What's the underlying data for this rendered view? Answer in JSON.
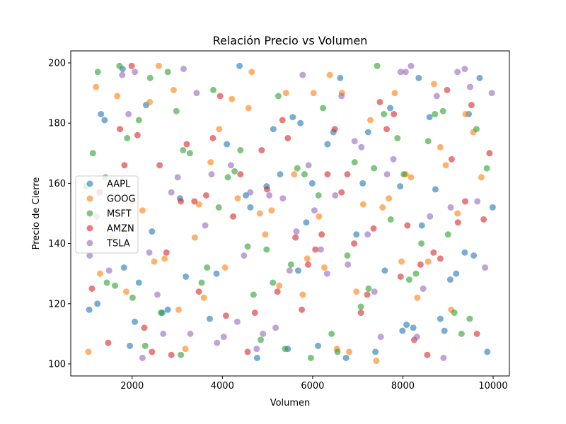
{
  "chart_data": {
    "type": "scatter",
    "title": "Relación Precio vs Volumen",
    "xlabel": "Volumen",
    "ylabel": "Precio de Cierre",
    "xlim": [
      640,
      10360
    ],
    "ylim": [
      96,
      204
    ],
    "xticks": [
      2000,
      4000,
      6000,
      8000,
      10000
    ],
    "yticks": [
      100,
      120,
      140,
      160,
      180,
      200
    ],
    "grid": false,
    "legend_position": "center-left",
    "marker_alpha": 0.6,
    "series": [
      {
        "name": "AAPL",
        "color": "#1f77b4",
        "points": [
          [
            1050,
            118
          ],
          [
            1230,
            120
          ],
          [
            1390,
            181
          ],
          [
            1790,
            198
          ],
          [
            1820,
            132
          ],
          [
            1950,
            106
          ],
          [
            2060,
            114
          ],
          [
            2150,
            127
          ],
          [
            2310,
            186
          ],
          [
            2440,
            144
          ],
          [
            2670,
            117
          ],
          [
            2790,
            118
          ],
          [
            3060,
            155
          ],
          [
            3190,
            129
          ],
          [
            3720,
            115
          ],
          [
            3870,
            130
          ],
          [
            4100,
            173
          ],
          [
            4380,
            199
          ],
          [
            4520,
            156
          ],
          [
            4620,
            152
          ],
          [
            4770,
            102
          ],
          [
            4980,
            159
          ],
          [
            5130,
            178
          ],
          [
            5280,
            163
          ],
          [
            5450,
            105
          ],
          [
            5560,
            182
          ],
          [
            5680,
            131
          ],
          [
            5730,
            180
          ],
          [
            5860,
            147
          ],
          [
            5990,
            160
          ],
          [
            6120,
            106
          ],
          [
            6330,
            173
          ],
          [
            6460,
            177
          ],
          [
            6610,
            195
          ],
          [
            6740,
            102
          ],
          [
            6970,
            143
          ],
          [
            7110,
            160
          ],
          [
            7230,
            177
          ],
          [
            7390,
            104
          ],
          [
            7600,
            131
          ],
          [
            7720,
            185
          ],
          [
            7940,
            159
          ],
          [
            7990,
            111
          ],
          [
            8080,
            113
          ],
          [
            8230,
            112
          ],
          [
            8350,
            195
          ],
          [
            8420,
            146
          ],
          [
            8590,
            182
          ],
          [
            8720,
            158
          ],
          [
            8830,
            115
          ],
          [
            8920,
            111
          ],
          [
            9050,
            128
          ],
          [
            9180,
            130
          ],
          [
            9370,
            137
          ],
          [
            9460,
            183
          ],
          [
            9570,
            136
          ],
          [
            9700,
            195
          ],
          [
            9870,
            104
          ],
          [
            9990,
            152
          ],
          [
            1310,
            183
          ]
        ]
      },
      {
        "name": "GOOG",
        "color": "#ff7f0e",
        "points": [
          [
            1030,
            104
          ],
          [
            1200,
            192
          ],
          [
            1290,
            130
          ],
          [
            1550,
            142
          ],
          [
            1670,
            189
          ],
          [
            1870,
            124
          ],
          [
            2010,
            154
          ],
          [
            2230,
            151
          ],
          [
            2390,
            187
          ],
          [
            2490,
            134
          ],
          [
            2590,
            199
          ],
          [
            2720,
            135
          ],
          [
            2920,
            191
          ],
          [
            3030,
            118
          ],
          [
            3180,
            105
          ],
          [
            3390,
            142
          ],
          [
            3480,
            153
          ],
          [
            3590,
            122
          ],
          [
            3740,
            167
          ],
          [
            3930,
            178
          ],
          [
            4060,
            132
          ],
          [
            4210,
            188
          ],
          [
            4340,
            155
          ],
          [
            4580,
            185
          ],
          [
            4650,
            197
          ],
          [
            4830,
            150
          ],
          [
            4950,
            143
          ],
          [
            5090,
            151
          ],
          [
            5260,
            126
          ],
          [
            5410,
            190
          ],
          [
            5590,
            163
          ],
          [
            5780,
            123
          ],
          [
            5880,
            135
          ],
          [
            6020,
            190
          ],
          [
            6140,
            149
          ],
          [
            6260,
            132
          ],
          [
            6380,
            196
          ],
          [
            6540,
            105
          ],
          [
            6650,
            190
          ],
          [
            6810,
            104
          ],
          [
            6970,
            124
          ],
          [
            7120,
            153
          ],
          [
            7280,
            181
          ],
          [
            7410,
            101
          ],
          [
            7550,
            152
          ],
          [
            7690,
            155
          ],
          [
            7820,
            190
          ],
          [
            7970,
            134
          ],
          [
            8060,
            163
          ],
          [
            8180,
            162
          ],
          [
            8320,
            122
          ],
          [
            8560,
            134
          ],
          [
            8690,
            193
          ],
          [
            8830,
            172
          ],
          [
            8950,
            166
          ],
          [
            9070,
            118
          ],
          [
            9210,
            150
          ],
          [
            9390,
            183
          ],
          [
            9560,
            177
          ],
          [
            9740,
            162
          ]
        ]
      },
      {
        "name": "MSFT",
        "color": "#2ca02c",
        "points": [
          [
            980,
            159
          ],
          [
            1130,
            170
          ],
          [
            1240,
            197
          ],
          [
            1410,
            162
          ],
          [
            1620,
            126
          ],
          [
            1720,
            199
          ],
          [
            1890,
            175
          ],
          [
            2010,
            122
          ],
          [
            2150,
            181
          ],
          [
            2290,
            106
          ],
          [
            2400,
            195
          ],
          [
            2640,
            117
          ],
          [
            2790,
            197
          ],
          [
            2980,
            184
          ],
          [
            3080,
            103
          ],
          [
            3130,
            171
          ],
          [
            3280,
            170
          ],
          [
            3540,
            127
          ],
          [
            3660,
            132
          ],
          [
            3800,
            191
          ],
          [
            3920,
            152
          ],
          [
            4120,
            162
          ],
          [
            4270,
            164
          ],
          [
            4400,
            171
          ],
          [
            4560,
            139
          ],
          [
            4690,
            123
          ],
          [
            4850,
            108
          ],
          [
            4980,
            138
          ],
          [
            5120,
            127
          ],
          [
            5240,
            189
          ],
          [
            5390,
            105
          ],
          [
            5520,
            133
          ],
          [
            5660,
            165
          ],
          [
            5820,
            163
          ],
          [
            5960,
            102
          ],
          [
            6130,
            156
          ],
          [
            6230,
            185
          ],
          [
            6420,
            110
          ],
          [
            6550,
            104
          ],
          [
            6770,
            136
          ],
          [
            6930,
            167
          ],
          [
            7070,
            119
          ],
          [
            7240,
            125
          ],
          [
            7360,
            165
          ],
          [
            7430,
            199
          ],
          [
            7580,
            183
          ],
          [
            7730,
            148
          ],
          [
            7880,
            175
          ],
          [
            8020,
            163
          ],
          [
            8140,
            128
          ],
          [
            8290,
            130
          ],
          [
            8410,
            140
          ],
          [
            8560,
            174
          ],
          [
            8710,
            183
          ],
          [
            8890,
            184
          ],
          [
            9000,
            143
          ],
          [
            9140,
            117
          ],
          [
            9300,
            110
          ],
          [
            9480,
            115
          ],
          [
            9630,
            178
          ],
          [
            9860,
            165
          ],
          [
            1440,
            127
          ]
        ]
      },
      {
        "name": "AMZN",
        "color": "#d62728",
        "points": [
          [
            1110,
            125
          ],
          [
            1280,
            157
          ],
          [
            1470,
            107
          ],
          [
            1730,
            178
          ],
          [
            1830,
            166
          ],
          [
            1990,
            199
          ],
          [
            2120,
            176
          ],
          [
            2270,
            112
          ],
          [
            2440,
            104
          ],
          [
            2610,
            166
          ],
          [
            2760,
            137
          ],
          [
            2870,
            103
          ],
          [
            3080,
            154
          ],
          [
            3210,
            173
          ],
          [
            3380,
            154
          ],
          [
            3480,
            124
          ],
          [
            3640,
            156
          ],
          [
            3790,
            175
          ],
          [
            3950,
            189
          ],
          [
            4080,
            116
          ],
          [
            4240,
            149
          ],
          [
            4400,
            163
          ],
          [
            4560,
            104
          ],
          [
            4720,
            117
          ],
          [
            4870,
            171
          ],
          [
            4990,
            158
          ],
          [
            5220,
            124
          ],
          [
            5330,
            181
          ],
          [
            5450,
            175
          ],
          [
            5620,
            142
          ],
          [
            5760,
            118
          ],
          [
            5900,
            133
          ],
          [
            6060,
            138
          ],
          [
            6200,
            143
          ],
          [
            6330,
            163
          ],
          [
            6490,
            178
          ],
          [
            6640,
            157
          ],
          [
            6770,
            163
          ],
          [
            6920,
            140
          ],
          [
            7070,
            117
          ],
          [
            7210,
            123
          ],
          [
            7350,
            145
          ],
          [
            7490,
            187
          ],
          [
            7640,
            178
          ],
          [
            7800,
            183
          ],
          [
            7950,
            129
          ],
          [
            8100,
            146
          ],
          [
            8250,
            108
          ],
          [
            8390,
            133
          ],
          [
            8540,
            103
          ],
          [
            8680,
            137
          ],
          [
            8830,
            135
          ],
          [
            8980,
            191
          ],
          [
            9080,
            168
          ],
          [
            9220,
            147
          ],
          [
            9380,
            154
          ],
          [
            9520,
            186
          ],
          [
            9640,
            110
          ],
          [
            9790,
            148
          ],
          [
            9920,
            170
          ]
        ]
      },
      {
        "name": "TSLA",
        "color": "#9467bd",
        "points": [
          [
            1060,
            136
          ],
          [
            1210,
            149
          ],
          [
            1490,
            131
          ],
          [
            1780,
            196
          ],
          [
            1920,
            183
          ],
          [
            2060,
            197
          ],
          [
            2230,
            102
          ],
          [
            2380,
            137
          ],
          [
            2560,
            123
          ],
          [
            2690,
            110
          ],
          [
            2870,
            157
          ],
          [
            3010,
            162
          ],
          [
            3140,
            198
          ],
          [
            3290,
            110
          ],
          [
            3430,
            190
          ],
          [
            3620,
            146
          ],
          [
            3760,
            163
          ],
          [
            3880,
            107
          ],
          [
            4030,
            109
          ],
          [
            4190,
            166
          ],
          [
            4330,
            114
          ],
          [
            4480,
            136
          ],
          [
            4620,
            157
          ],
          [
            4760,
            105
          ],
          [
            4900,
            110
          ],
          [
            5040,
            156
          ],
          [
            5180,
            112
          ],
          [
            5340,
            155
          ],
          [
            5490,
            131
          ],
          [
            5640,
            144
          ],
          [
            5780,
            196
          ],
          [
            5910,
            166
          ],
          [
            6040,
            151
          ],
          [
            6180,
            138
          ],
          [
            6320,
            130
          ],
          [
            6500,
            156
          ],
          [
            6640,
            189
          ],
          [
            6780,
            133
          ],
          [
            6930,
            174
          ],
          [
            7080,
            172
          ],
          [
            7220,
            143
          ],
          [
            7370,
            124
          ],
          [
            7510,
            109
          ],
          [
            7650,
            163
          ],
          [
            7790,
            168
          ],
          [
            7950,
            197
          ],
          [
            8060,
            197
          ],
          [
            8180,
            199
          ],
          [
            8310,
            109
          ],
          [
            8450,
            125
          ],
          [
            8600,
            149
          ],
          [
            8750,
            189
          ],
          [
            8900,
            102
          ],
          [
            9060,
            152
          ],
          [
            9210,
            197
          ],
          [
            9370,
            198
          ],
          [
            9490,
            192
          ],
          [
            9650,
            154
          ],
          [
            9820,
            132
          ],
          [
            9970,
            190
          ]
        ]
      }
    ]
  }
}
